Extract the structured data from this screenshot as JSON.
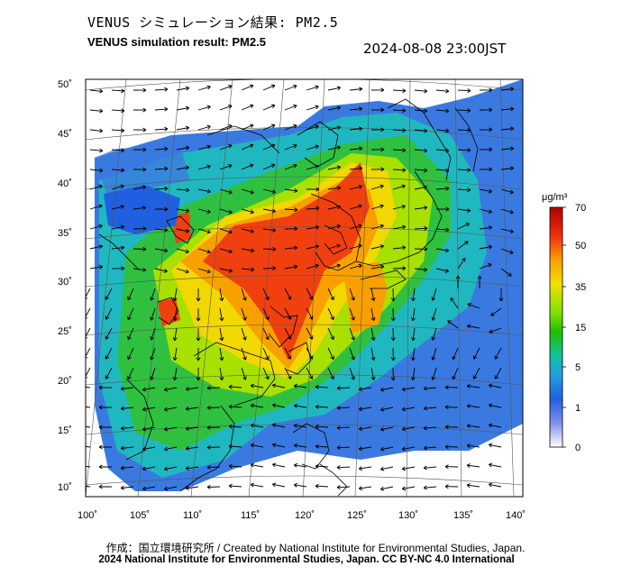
{
  "header": {
    "title_jp": "VENUS シミュレーション結果: PM2.5",
    "title_en": "VENUS simulation result: PM2.5",
    "timestamp": "2024-08-08 23:00JST"
  },
  "map": {
    "lon_labels": [
      "100˚",
      "105˚",
      "110˚",
      "115˚",
      "120˚",
      "125˚",
      "130˚",
      "135˚",
      "140˚"
    ],
    "lat_labels": [
      "50˚",
      "45˚",
      "40˚",
      "35˚",
      "30˚",
      "25˚",
      "20˚",
      "15˚",
      "10˚"
    ],
    "lon_values": [
      100,
      105,
      110,
      115,
      120,
      125,
      130,
      135,
      140
    ],
    "lat_values": [
      50,
      45,
      40,
      35,
      30,
      25,
      20,
      15,
      10
    ]
  },
  "colorbar": {
    "unit": "μg/m³",
    "tick_labels": [
      "70",
      "50",
      "35",
      "15",
      "5",
      "1",
      "0"
    ],
    "colors": [
      "#d01010",
      "#f04010",
      "#f8a000",
      "#f0e000",
      "#a0e000",
      "#20c000",
      "#10c0a0",
      "#20a0e0",
      "#2060e0",
      "#5070e8",
      "#a0a8f0",
      "#ffffff"
    ]
  },
  "footer": {
    "credit": "作成：国立環境研究所 / Created by National Institute for Environmental Studies, Japan.",
    "copyright": "2024 National Institute for Environmental Studies, Japan. CC BY-NC 4.0 International"
  }
}
